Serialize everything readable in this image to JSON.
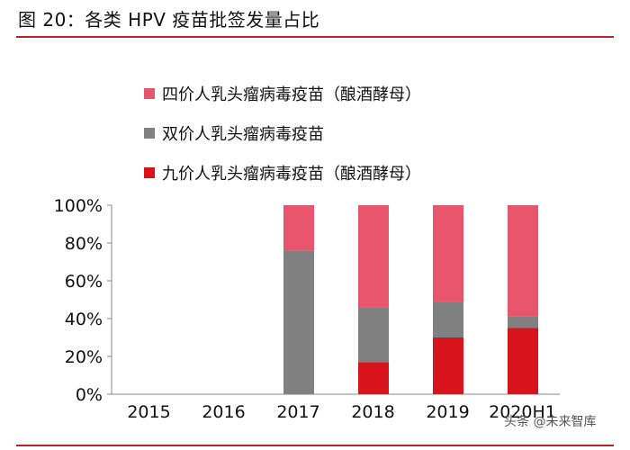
{
  "title": "图 20：各类 HPV 疫苗批签发量占比",
  "watermark": "头条 @未来智库",
  "colors": {
    "bivalent": "#808080",
    "quadrivalent": "#e8566e",
    "nonavalent": "#d8131c",
    "axis": "#888888",
    "accent_rule": "#c0202a"
  },
  "legend": [
    {
      "label": "四价人乳头瘤病毒疫苗（酿酒酵母）",
      "color": "#e8566e"
    },
    {
      "label": "双价人乳头瘤病毒疫苗",
      "color": "#808080"
    },
    {
      "label": "九价人乳头瘤病毒疫苗（酿酒酵母）",
      "color": "#d8131c"
    }
  ],
  "chart_data": {
    "type": "bar",
    "stacked": true,
    "title": "图 20：各类 HPV 疫苗批签发量占比",
    "categories": [
      "2015",
      "2016",
      "2017",
      "2018",
      "2019",
      "2020H1"
    ],
    "series": [
      {
        "name": "九价人乳头瘤病毒疫苗（酿酒酵母）",
        "color": "#d8131c",
        "values": [
          0,
          0,
          0,
          17,
          30,
          35
        ]
      },
      {
        "name": "双价人乳头瘤病毒疫苗",
        "color": "#808080",
        "values": [
          0,
          0,
          76,
          29,
          19,
          6
        ]
      },
      {
        "name": "四价人乳头瘤病毒疫苗（酿酒酵母）",
        "color": "#e8566e",
        "values": [
          0,
          0,
          24,
          54,
          51,
          59
        ]
      }
    ],
    "yticks": [
      "0%",
      "20%",
      "40%",
      "60%",
      "80%",
      "100%"
    ],
    "ylim": [
      0,
      100
    ],
    "xlabel": "",
    "ylabel": "",
    "legend_position": "top"
  }
}
